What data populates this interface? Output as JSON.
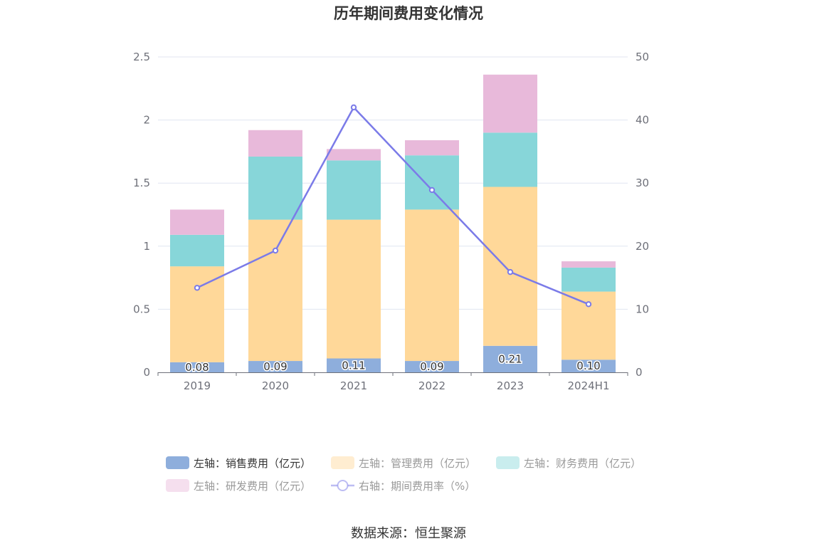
{
  "chart_data": {
    "type": "bar",
    "title": "历年期间费用变化情况",
    "categories": [
      "2019",
      "2020",
      "2021",
      "2022",
      "2023",
      "2024H1"
    ],
    "stacked": true,
    "left_axis": {
      "min": 0,
      "max": 2.5,
      "ticks": [
        "0",
        "0.5",
        "1",
        "1.5",
        "2",
        "2.5"
      ]
    },
    "right_axis": {
      "min": 0,
      "max": 50,
      "ticks": [
        "0",
        "10",
        "20",
        "30",
        "40",
        "50"
      ]
    },
    "series": [
      {
        "name": "左轴：销售费用（亿元）",
        "type": "bar",
        "axis": "left",
        "color": "#8eaedc",
        "values": [
          0.08,
          0.09,
          0.11,
          0.09,
          0.21,
          0.1
        ],
        "labels": [
          "0.08",
          "0.09",
          "0.11",
          "0.09",
          "0.21",
          "0.10"
        ]
      },
      {
        "name": "左轴：管理费用（亿元）",
        "type": "bar",
        "axis": "left",
        "color": "#ffd899",
        "values": [
          0.76,
          1.12,
          1.1,
          1.2,
          1.26,
          0.54
        ]
      },
      {
        "name": "左轴：财务费用（亿元）",
        "type": "bar",
        "axis": "left",
        "color": "#87d6d9",
        "values": [
          0.25,
          0.5,
          0.47,
          0.43,
          0.43,
          0.19
        ]
      },
      {
        "name": "左轴：研发费用（亿元）",
        "type": "bar",
        "axis": "left",
        "color": "#e8b9da",
        "values": [
          0.2,
          0.21,
          0.09,
          0.12,
          0.46,
          0.05
        ]
      },
      {
        "name": "右轴：期间费用率（%）",
        "type": "line",
        "axis": "right",
        "color": "#7b7be8",
        "values": [
          13.4,
          19.3,
          42.0,
          28.9,
          15.9,
          10.8
        ]
      }
    ],
    "legend_position": "bottom",
    "grid": "horizontal"
  },
  "source": "数据来源：恒生聚源"
}
